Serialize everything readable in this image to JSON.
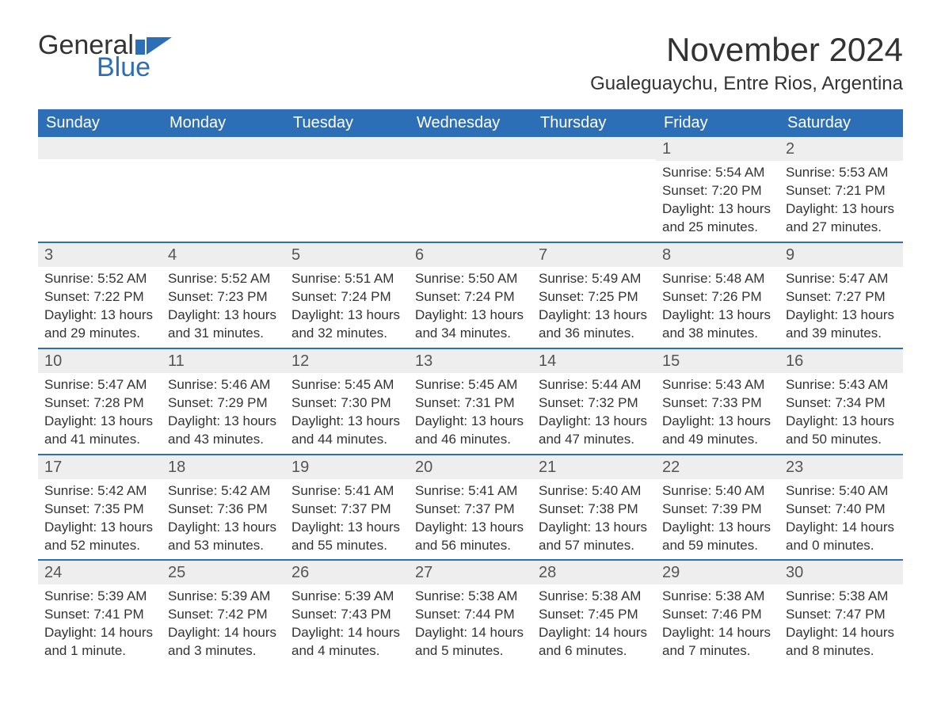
{
  "logo": {
    "text1": "General",
    "text2": "Blue",
    "brand_color": "#2d6fb6"
  },
  "title": "November 2024",
  "location": "Gualeguaychu, Entre Rios, Argentina",
  "colors": {
    "header_bg": "#2d6fb6",
    "header_text": "#ffffff",
    "daynum_bg": "#eeeeee",
    "divider": "#2d6fb6",
    "text": "#333333"
  },
  "weekdays": [
    "Sunday",
    "Monday",
    "Tuesday",
    "Wednesday",
    "Thursday",
    "Friday",
    "Saturday"
  ],
  "weeks": [
    [
      null,
      null,
      null,
      null,
      null,
      {
        "n": "1",
        "sunrise": "Sunrise: 5:54 AM",
        "sunset": "Sunset: 7:20 PM",
        "daylight": "Daylight: 13 hours and 25 minutes."
      },
      {
        "n": "2",
        "sunrise": "Sunrise: 5:53 AM",
        "sunset": "Sunset: 7:21 PM",
        "daylight": "Daylight: 13 hours and 27 minutes."
      }
    ],
    [
      {
        "n": "3",
        "sunrise": "Sunrise: 5:52 AM",
        "sunset": "Sunset: 7:22 PM",
        "daylight": "Daylight: 13 hours and 29 minutes."
      },
      {
        "n": "4",
        "sunrise": "Sunrise: 5:52 AM",
        "sunset": "Sunset: 7:23 PM",
        "daylight": "Daylight: 13 hours and 31 minutes."
      },
      {
        "n": "5",
        "sunrise": "Sunrise: 5:51 AM",
        "sunset": "Sunset: 7:24 PM",
        "daylight": "Daylight: 13 hours and 32 minutes."
      },
      {
        "n": "6",
        "sunrise": "Sunrise: 5:50 AM",
        "sunset": "Sunset: 7:24 PM",
        "daylight": "Daylight: 13 hours and 34 minutes."
      },
      {
        "n": "7",
        "sunrise": "Sunrise: 5:49 AM",
        "sunset": "Sunset: 7:25 PM",
        "daylight": "Daylight: 13 hours and 36 minutes."
      },
      {
        "n": "8",
        "sunrise": "Sunrise: 5:48 AM",
        "sunset": "Sunset: 7:26 PM",
        "daylight": "Daylight: 13 hours and 38 minutes."
      },
      {
        "n": "9",
        "sunrise": "Sunrise: 5:47 AM",
        "sunset": "Sunset: 7:27 PM",
        "daylight": "Daylight: 13 hours and 39 minutes."
      }
    ],
    [
      {
        "n": "10",
        "sunrise": "Sunrise: 5:47 AM",
        "sunset": "Sunset: 7:28 PM",
        "daylight": "Daylight: 13 hours and 41 minutes."
      },
      {
        "n": "11",
        "sunrise": "Sunrise: 5:46 AM",
        "sunset": "Sunset: 7:29 PM",
        "daylight": "Daylight: 13 hours and 43 minutes."
      },
      {
        "n": "12",
        "sunrise": "Sunrise: 5:45 AM",
        "sunset": "Sunset: 7:30 PM",
        "daylight": "Daylight: 13 hours and 44 minutes."
      },
      {
        "n": "13",
        "sunrise": "Sunrise: 5:45 AM",
        "sunset": "Sunset: 7:31 PM",
        "daylight": "Daylight: 13 hours and 46 minutes."
      },
      {
        "n": "14",
        "sunrise": "Sunrise: 5:44 AM",
        "sunset": "Sunset: 7:32 PM",
        "daylight": "Daylight: 13 hours and 47 minutes."
      },
      {
        "n": "15",
        "sunrise": "Sunrise: 5:43 AM",
        "sunset": "Sunset: 7:33 PM",
        "daylight": "Daylight: 13 hours and 49 minutes."
      },
      {
        "n": "16",
        "sunrise": "Sunrise: 5:43 AM",
        "sunset": "Sunset: 7:34 PM",
        "daylight": "Daylight: 13 hours and 50 minutes."
      }
    ],
    [
      {
        "n": "17",
        "sunrise": "Sunrise: 5:42 AM",
        "sunset": "Sunset: 7:35 PM",
        "daylight": "Daylight: 13 hours and 52 minutes."
      },
      {
        "n": "18",
        "sunrise": "Sunrise: 5:42 AM",
        "sunset": "Sunset: 7:36 PM",
        "daylight": "Daylight: 13 hours and 53 minutes."
      },
      {
        "n": "19",
        "sunrise": "Sunrise: 5:41 AM",
        "sunset": "Sunset: 7:37 PM",
        "daylight": "Daylight: 13 hours and 55 minutes."
      },
      {
        "n": "20",
        "sunrise": "Sunrise: 5:41 AM",
        "sunset": "Sunset: 7:37 PM",
        "daylight": "Daylight: 13 hours and 56 minutes."
      },
      {
        "n": "21",
        "sunrise": "Sunrise: 5:40 AM",
        "sunset": "Sunset: 7:38 PM",
        "daylight": "Daylight: 13 hours and 57 minutes."
      },
      {
        "n": "22",
        "sunrise": "Sunrise: 5:40 AM",
        "sunset": "Sunset: 7:39 PM",
        "daylight": "Daylight: 13 hours and 59 minutes."
      },
      {
        "n": "23",
        "sunrise": "Sunrise: 5:40 AM",
        "sunset": "Sunset: 7:40 PM",
        "daylight": "Daylight: 14 hours and 0 minutes."
      }
    ],
    [
      {
        "n": "24",
        "sunrise": "Sunrise: 5:39 AM",
        "sunset": "Sunset: 7:41 PM",
        "daylight": "Daylight: 14 hours and 1 minute."
      },
      {
        "n": "25",
        "sunrise": "Sunrise: 5:39 AM",
        "sunset": "Sunset: 7:42 PM",
        "daylight": "Daylight: 14 hours and 3 minutes."
      },
      {
        "n": "26",
        "sunrise": "Sunrise: 5:39 AM",
        "sunset": "Sunset: 7:43 PM",
        "daylight": "Daylight: 14 hours and 4 minutes."
      },
      {
        "n": "27",
        "sunrise": "Sunrise: 5:38 AM",
        "sunset": "Sunset: 7:44 PM",
        "daylight": "Daylight: 14 hours and 5 minutes."
      },
      {
        "n": "28",
        "sunrise": "Sunrise: 5:38 AM",
        "sunset": "Sunset: 7:45 PM",
        "daylight": "Daylight: 14 hours and 6 minutes."
      },
      {
        "n": "29",
        "sunrise": "Sunrise: 5:38 AM",
        "sunset": "Sunset: 7:46 PM",
        "daylight": "Daylight: 14 hours and 7 minutes."
      },
      {
        "n": "30",
        "sunrise": "Sunrise: 5:38 AM",
        "sunset": "Sunset: 7:47 PM",
        "daylight": "Daylight: 14 hours and 8 minutes."
      }
    ]
  ]
}
